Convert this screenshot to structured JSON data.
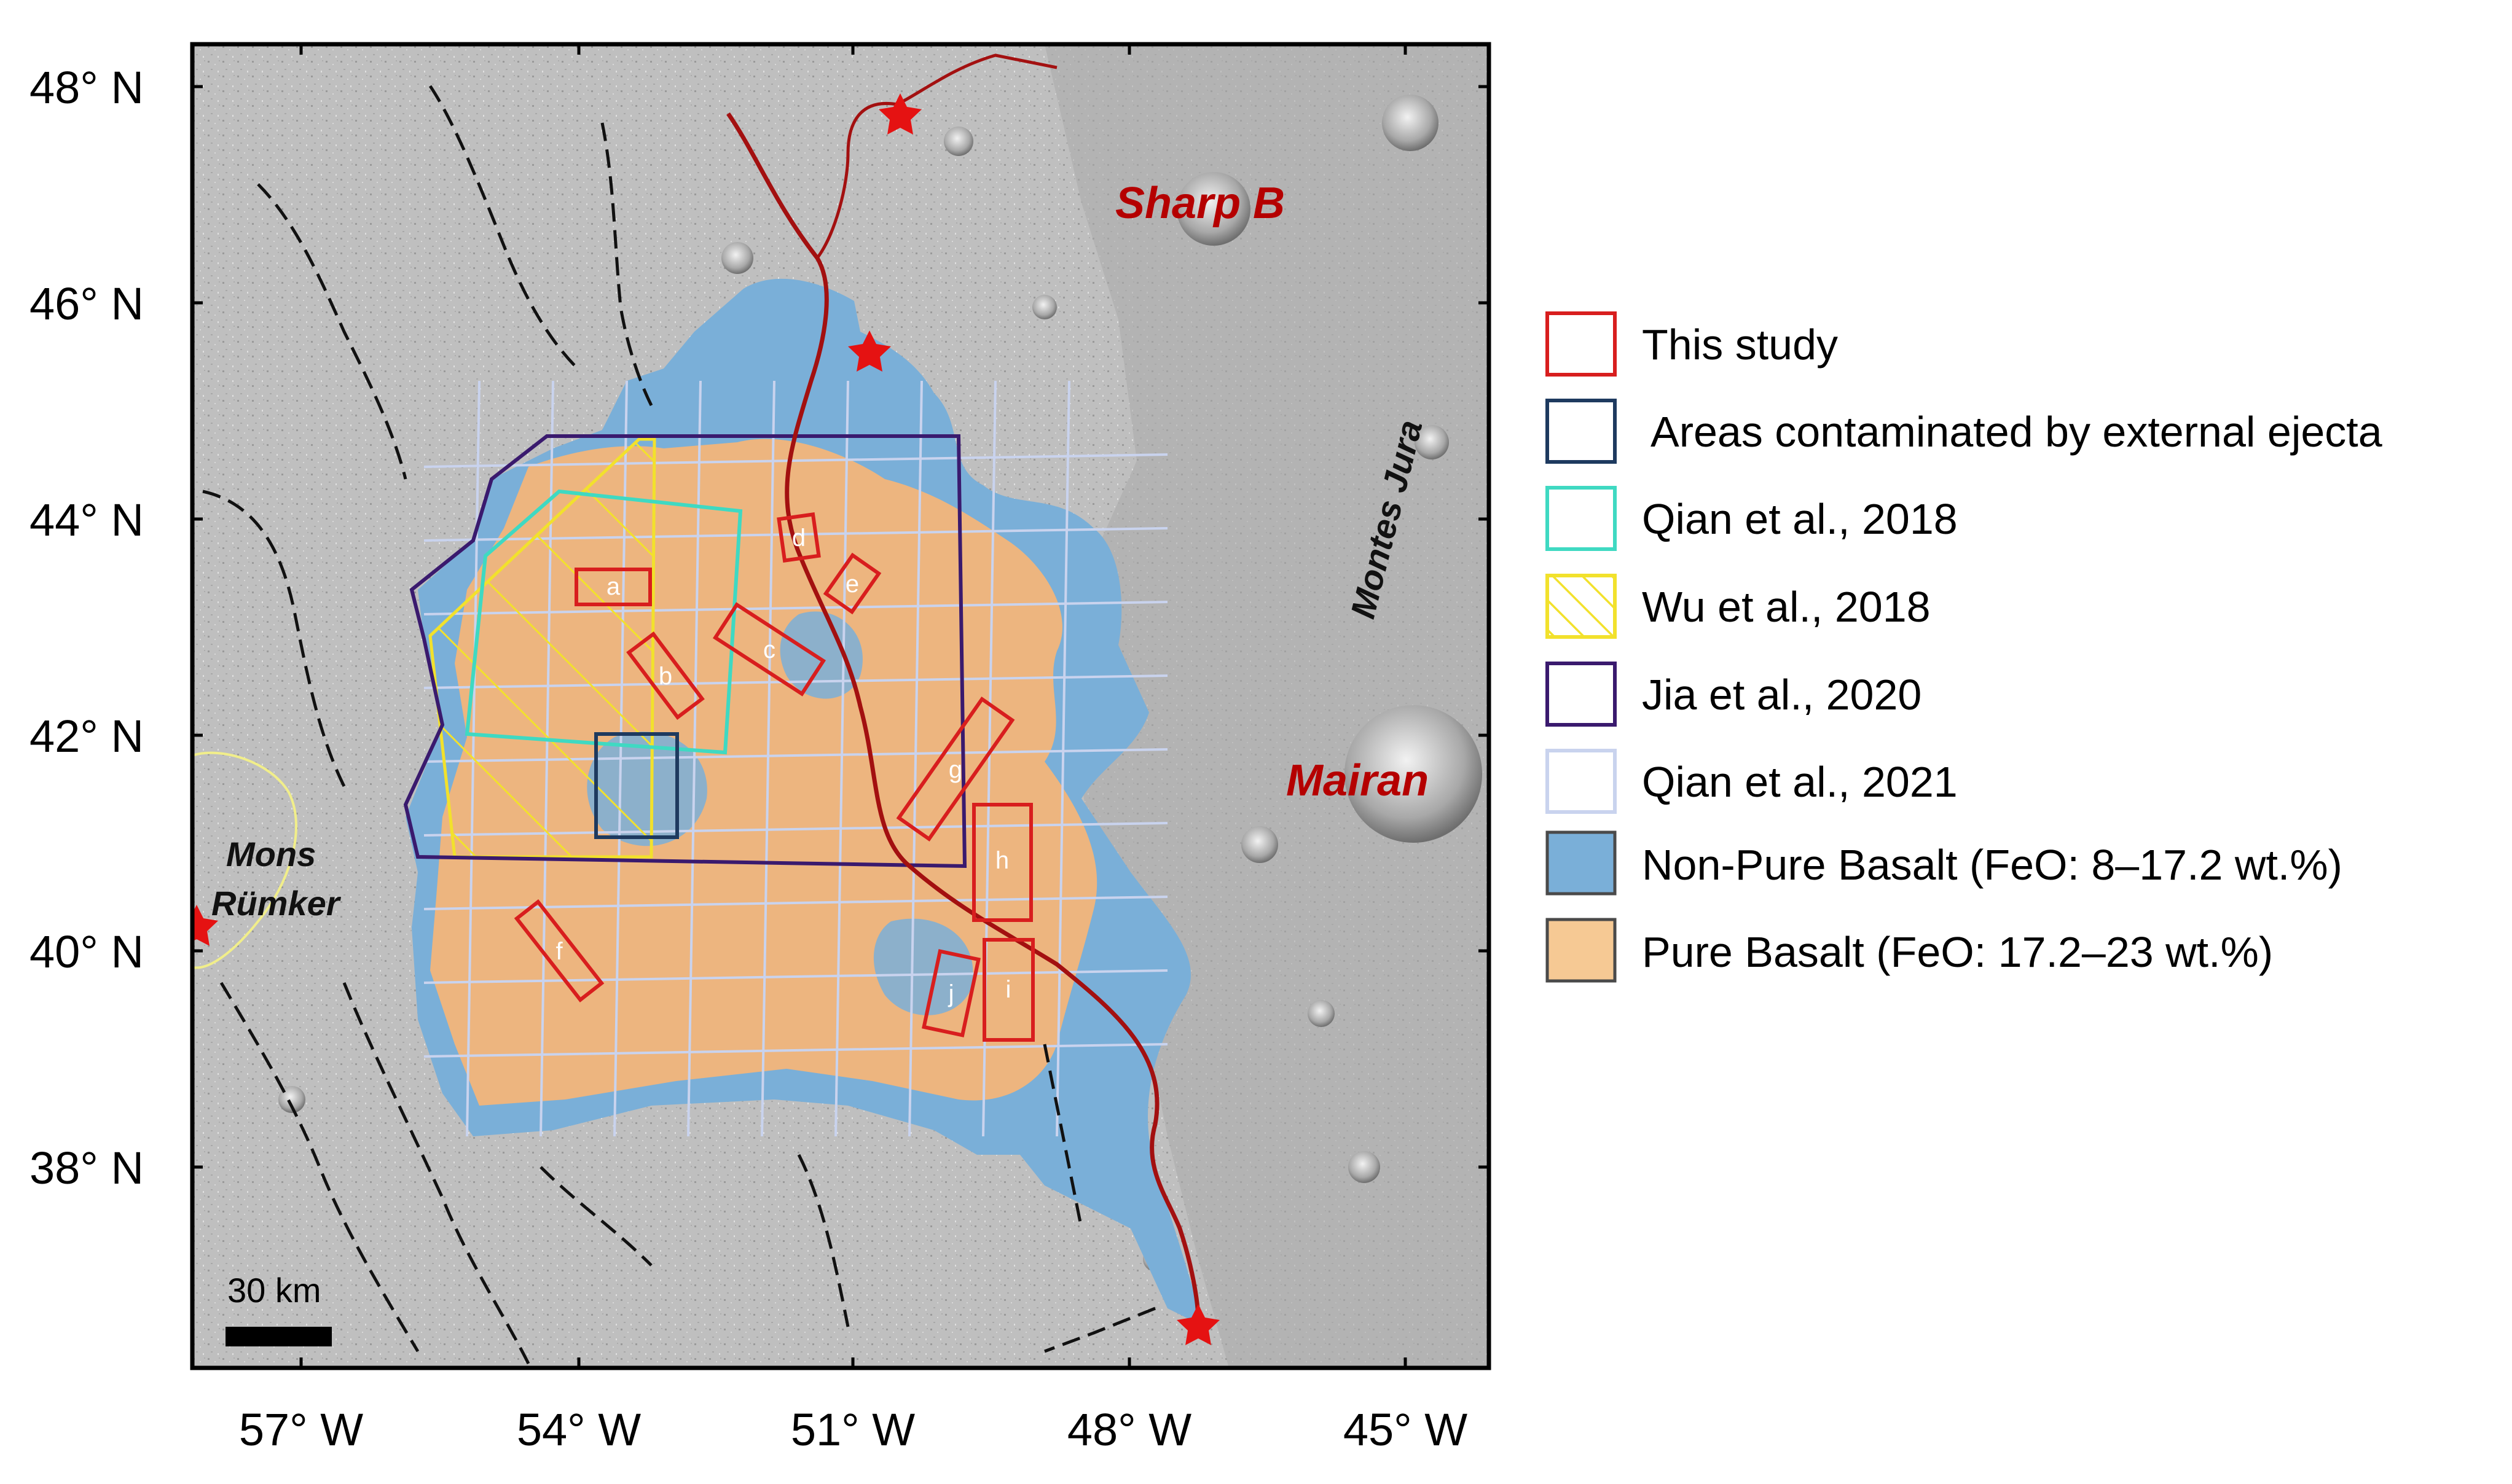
{
  "map": {
    "lat_labels": [
      "48° N",
      "46° N",
      "44° N",
      "42° N",
      "40° N",
      "38° N"
    ],
    "lon_labels": [
      "57° W",
      "54° W",
      "51° W",
      "48° W",
      "45° W"
    ],
    "place_labels": {
      "sharp_b": "Sharp B",
      "mairan": "Mairan",
      "montes_jura": "Montes Jura",
      "mons_rumker_line1": "Mons",
      "mons_rumker_line2": "Rümker"
    },
    "study_boxes": [
      "a",
      "b",
      "c",
      "d",
      "e",
      "f",
      "g",
      "h",
      "i",
      "j"
    ],
    "scale_bar": {
      "label": "30 km"
    }
  },
  "legend": [
    {
      "label": "This study",
      "color": "#d81e1e",
      "style": "outline"
    },
    {
      "label": "Areas contaminated by external ejecta",
      "color": "#1e3a5f",
      "style": "outline"
    },
    {
      "label": "Qian et al., 2018",
      "color": "#3fd9c2",
      "style": "outline"
    },
    {
      "label": "Wu et al., 2018",
      "color": "#f2e12c",
      "style": "hatch"
    },
    {
      "label": "Jia et al., 2020",
      "color": "#3a1a6e",
      "style": "outline"
    },
    {
      "label": "Qian et al., 2021",
      "color": "#c9d3ee",
      "style": "outline"
    },
    {
      "label": "Non-Pure Basalt (FeO: 8–17.2 wt.%)",
      "color": "#7aafd8",
      "style": "fill"
    },
    {
      "label": "Pure Basalt (FeO: 17.2–23 wt.%)",
      "color": "#f6c994",
      "style": "fill"
    }
  ],
  "colors": {
    "terrain": "#bdbdbd",
    "pure_basalt": "#edb57f",
    "non_pure_basalt": "#7aafd8",
    "river": "#a31010",
    "star": "#e51212",
    "faults": "#111111"
  }
}
